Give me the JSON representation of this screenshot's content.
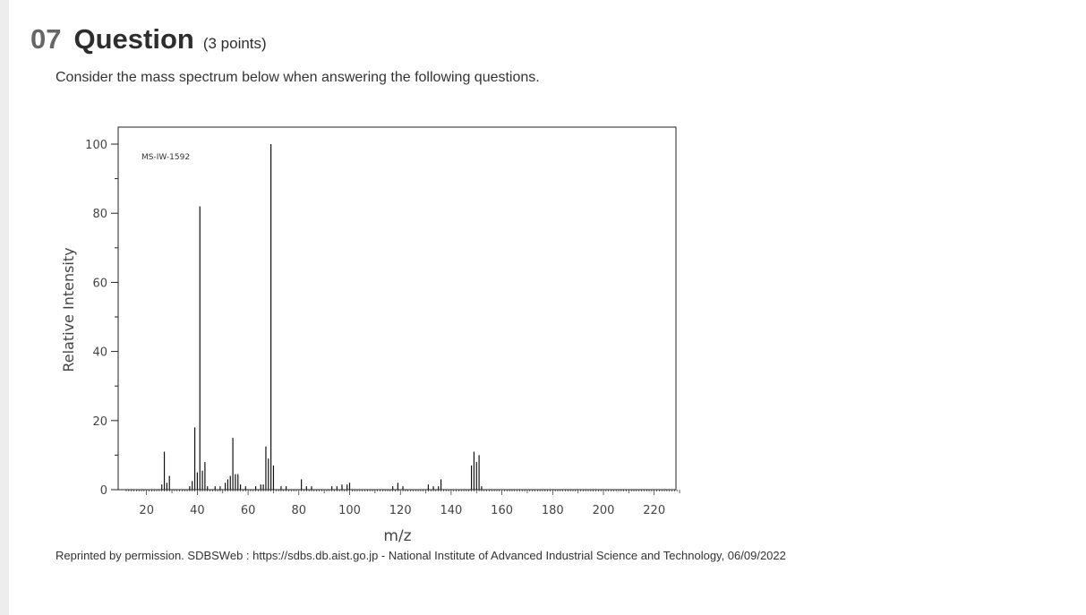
{
  "question": {
    "number": "07",
    "title": "Question",
    "points": "(3 points)",
    "prompt": "Consider the mass spectrum below when answering the following questions."
  },
  "credit": "Reprinted by permission. SDBSWeb : https://sdbs.db.aist.go.jp - National Institute of Advanced Industrial Science and Technology, 06/09/2022",
  "chart_data": {
    "type": "bar",
    "annotation": "MS-IW-1592",
    "xlabel": "m/z",
    "ylabel": "Relative Intensity",
    "xlim": [
      11,
      232
    ],
    "ylim": [
      0,
      105
    ],
    "xticks": [
      20,
      40,
      60,
      80,
      100,
      120,
      140,
      160,
      180,
      200,
      220
    ],
    "yticks": [
      0,
      20,
      40,
      60,
      80,
      100
    ],
    "peaks": [
      [
        26,
        1.5
      ],
      [
        27,
        11
      ],
      [
        28,
        2
      ],
      [
        29,
        4
      ],
      [
        37,
        1
      ],
      [
        38,
        2.5
      ],
      [
        39,
        18
      ],
      [
        40,
        5
      ],
      [
        41,
        82
      ],
      [
        42,
        5.5
      ],
      [
        43,
        8
      ],
      [
        44,
        1
      ],
      [
        47,
        1
      ],
      [
        49,
        1
      ],
      [
        51,
        2
      ],
      [
        52,
        3
      ],
      [
        53,
        4
      ],
      [
        54,
        15
      ],
      [
        55,
        4.5
      ],
      [
        56,
        4.5
      ],
      [
        57,
        1.5
      ],
      [
        59,
        1
      ],
      [
        63,
        1
      ],
      [
        65,
        1.5
      ],
      [
        66,
        1.5
      ],
      [
        67,
        12.5
      ],
      [
        68,
        9
      ],
      [
        69,
        100
      ],
      [
        70,
        7
      ],
      [
        73,
        1
      ],
      [
        75,
        1
      ],
      [
        81,
        3
      ],
      [
        83,
        1
      ],
      [
        85,
        1
      ],
      [
        93,
        1
      ],
      [
        95,
        1
      ],
      [
        97,
        1.5
      ],
      [
        99,
        1.5
      ],
      [
        100,
        2
      ],
      [
        117,
        1
      ],
      [
        119,
        2
      ],
      [
        121,
        1
      ],
      [
        131,
        1.5
      ],
      [
        133,
        1
      ],
      [
        135,
        1
      ],
      [
        136,
        3
      ],
      [
        148,
        7
      ],
      [
        149,
        11
      ],
      [
        150,
        8
      ],
      [
        151,
        10
      ],
      [
        152,
        1
      ]
    ]
  }
}
